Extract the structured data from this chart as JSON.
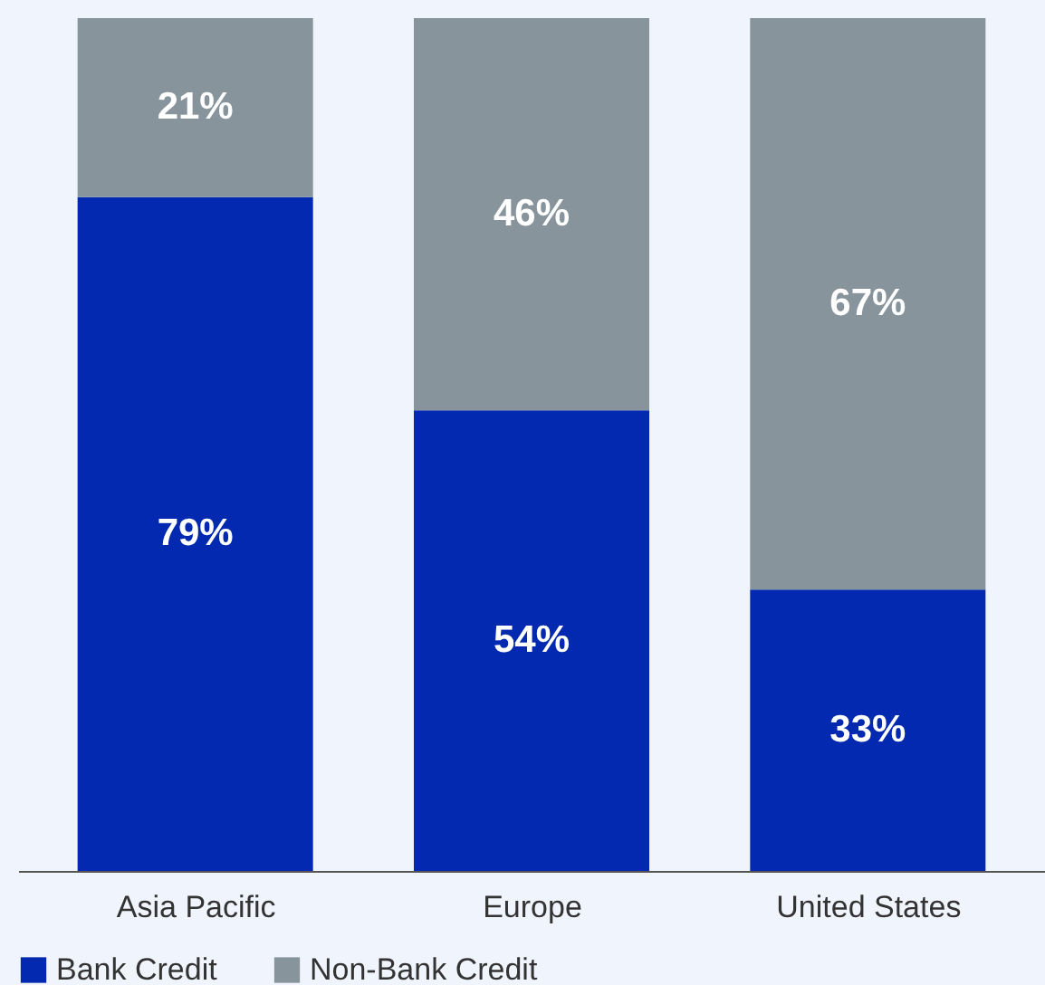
{
  "chart_data": {
    "type": "bar",
    "stacked": true,
    "categories": [
      "Asia Pacific",
      "Europe",
      "United States"
    ],
    "series": [
      {
        "name": "Bank Credit",
        "color": "#0229b0",
        "values": [
          79,
          54,
          33
        ],
        "value_labels": [
          "79%",
          "54%",
          "33%"
        ]
      },
      {
        "name": "Non-Bank Credit",
        "color": "#87949c",
        "values": [
          21,
          46,
          67
        ],
        "value_labels": [
          "21%",
          "46%",
          "67%"
        ]
      }
    ],
    "ylim": [
      0,
      100
    ],
    "grid": false,
    "legend": "bottom"
  }
}
